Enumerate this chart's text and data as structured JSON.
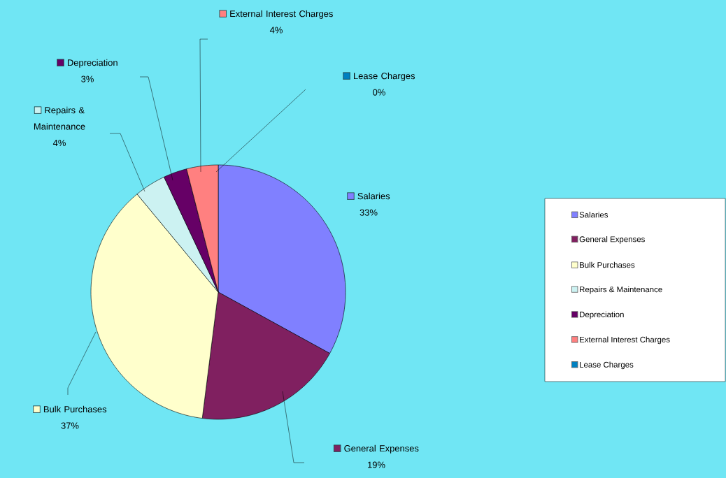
{
  "chart_data": {
    "type": "pie",
    "categories": [
      "Salaries",
      "General Expenses",
      "Bulk Purchases",
      "Repairs & Maintenance",
      "Depreciation",
      "External Interest Charges",
      "Lease Charges"
    ],
    "values": [
      33,
      19,
      37,
      4,
      3,
      4,
      0
    ],
    "value_labels": [
      "33%",
      "19%",
      "37%",
      "4%",
      "3%",
      "4%",
      "0%"
    ],
    "colors": [
      "#8080ff",
      "#802060",
      "#ffffcc",
      "#ccf2f2",
      "#660066",
      "#ff8080",
      "#0080c0"
    ],
    "legend": "right"
  }
}
